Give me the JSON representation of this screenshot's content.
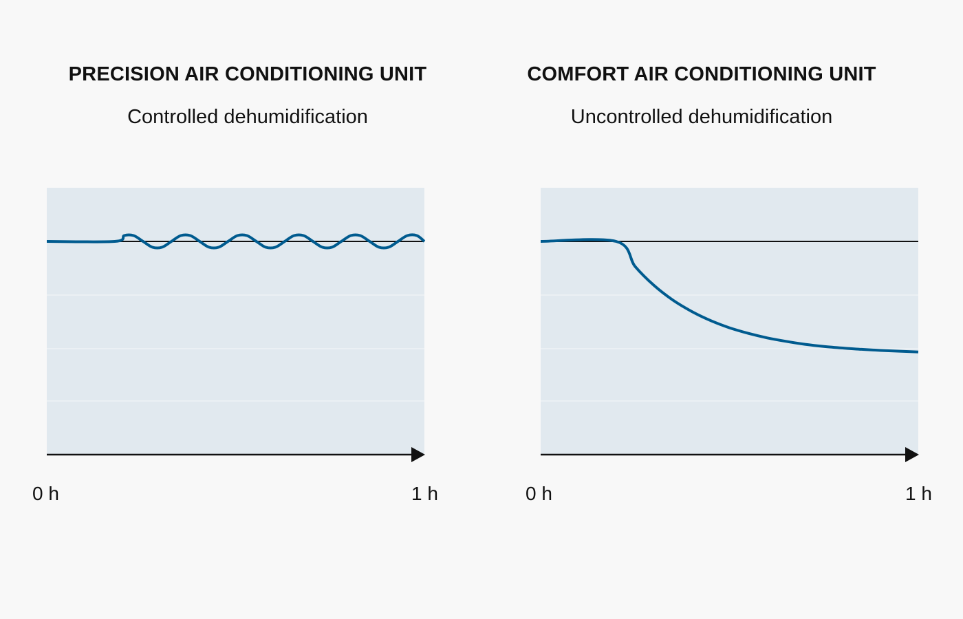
{
  "chart_data": [
    {
      "type": "line",
      "title": "PRECISION AIR CONDITIONING UNIT",
      "subtitle": "Controlled dehumidification",
      "x_tick_labels": [
        "0 h",
        "1 h"
      ],
      "xlim": [
        0,
        1
      ],
      "ylim": [
        0,
        1
      ],
      "setpoint": 0.8,
      "series": [
        {
          "color": "#005b8f",
          "x": [
            0,
            0.18,
            0.205,
            0.23,
            0.255,
            0.28,
            0.305,
            0.33,
            0.355,
            0.38,
            0.405,
            0.43,
            0.455,
            0.48,
            0.505,
            0.53,
            0.555,
            0.58,
            0.605,
            0.63,
            0.655,
            0.68,
            0.705,
            0.73,
            0.755,
            0.78,
            0.805,
            0.83,
            0.855,
            0.88,
            0.905,
            0.93,
            0.955,
            0.98,
            1.0
          ],
          "y": [
            0.8,
            0.8,
            0.822,
            0.822,
            0.8,
            0.778,
            0.778,
            0.8,
            0.822,
            0.822,
            0.8,
            0.778,
            0.778,
            0.8,
            0.822,
            0.822,
            0.8,
            0.778,
            0.778,
            0.8,
            0.822,
            0.822,
            0.8,
            0.778,
            0.778,
            0.8,
            0.822,
            0.822,
            0.8,
            0.778,
            0.778,
            0.8,
            0.822,
            0.822,
            0.8
          ]
        }
      ]
    },
    {
      "type": "line",
      "title": "COMFORT AIR CONDITIONING UNIT",
      "subtitle": "Uncontrolled dehumidification",
      "x_tick_labels": [
        "0 h",
        "1 h"
      ],
      "xlim": [
        0,
        1
      ],
      "ylim": [
        0,
        1
      ],
      "setpoint": 0.8,
      "series": [
        {
          "color": "#005b8f",
          "x": [
            0,
            0.2,
            0.25,
            0.3,
            0.35,
            0.4,
            0.45,
            0.5,
            0.55,
            0.6,
            0.65,
            0.7,
            0.75,
            0.8,
            0.85,
            0.9,
            0.95,
            1.0
          ],
          "y": [
            0.8,
            0.8,
            0.706,
            0.635,
            0.58,
            0.537,
            0.503,
            0.476,
            0.455,
            0.438,
            0.425,
            0.414,
            0.406,
            0.4,
            0.395,
            0.391,
            0.388,
            0.385
          ]
        }
      ]
    }
  ],
  "style": {
    "plot_background": "#e1e9ef",
    "grid_line": "#ebf0f4",
    "axis_color": "#111111",
    "setpoint_color": "#111111"
  }
}
